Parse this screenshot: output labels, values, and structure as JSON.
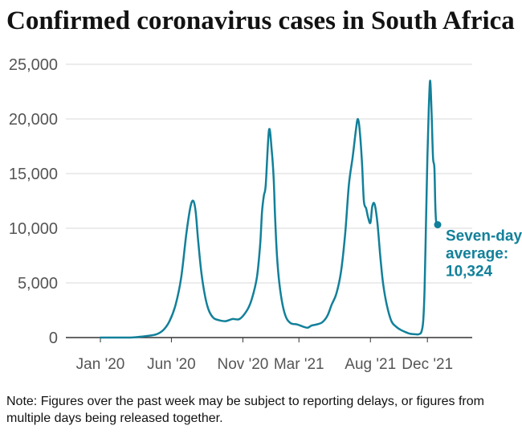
{
  "title": "Confirmed coronavirus cases in South Africa",
  "note": "Note: Figures over the past week may be subject to reporting delays, or figures from multiple days being released together.",
  "chart_data": {
    "type": "line",
    "title": "Confirmed coronavirus cases in South Africa",
    "xlabel": "",
    "ylabel": "",
    "ylim": [
      0,
      25000
    ],
    "xlim": [
      "2020-01-01",
      "2021-12-23"
    ],
    "y_ticks": [
      0,
      5000,
      10000,
      15000,
      20000,
      25000
    ],
    "y_tick_labels": [
      "0",
      "5,000",
      "10,000",
      "15,000",
      "20,000",
      "25,000"
    ],
    "x_ticks": [
      "2020-01-01",
      "2020-06-01",
      "2020-11-01",
      "2021-03-01",
      "2021-08-01",
      "2021-12-01"
    ],
    "x_tick_labels": [
      "Jan '20",
      "Jun '20",
      "Nov '20",
      "Mar '21",
      "Aug '21",
      "Dec '21"
    ],
    "grid": true,
    "series": [
      {
        "color": "#12809a",
        "x": [
          "2020-01-01",
          "2020-03-01",
          "2020-03-20",
          "2020-04-10",
          "2020-04-30",
          "2020-05-15",
          "2020-05-28",
          "2020-06-10",
          "2020-06-22",
          "2020-07-03",
          "2020-07-12",
          "2020-07-18",
          "2020-07-23",
          "2020-07-28",
          "2020-08-04",
          "2020-08-12",
          "2020-08-20",
          "2020-08-30",
          "2020-09-10",
          "2020-09-25",
          "2020-10-10",
          "2020-10-25",
          "2020-11-10",
          "2020-11-20",
          "2020-12-01",
          "2020-12-08",
          "2020-12-12",
          "2020-12-16",
          "2020-12-20",
          "2020-12-27",
          "2021-01-02",
          "2021-01-06",
          "2021-01-09",
          "2021-01-13",
          "2021-01-18",
          "2021-01-25",
          "2021-02-02",
          "2021-02-12",
          "2021-02-25",
          "2021-03-10",
          "2021-03-20",
          "2021-03-28",
          "2021-04-08",
          "2021-04-20",
          "2021-05-01",
          "2021-05-10",
          "2021-05-20",
          "2021-05-30",
          "2021-06-08",
          "2021-06-16",
          "2021-06-24",
          "2021-07-01",
          "2021-07-05",
          "2021-07-09",
          "2021-07-14",
          "2021-07-18",
          "2021-07-23",
          "2021-07-27",
          "2021-08-01",
          "2021-08-05",
          "2021-08-10",
          "2021-08-16",
          "2021-08-22",
          "2021-08-28",
          "2021-09-05",
          "2021-09-15",
          "2021-09-25",
          "2021-10-05",
          "2021-10-15",
          "2021-10-25",
          "2021-11-05",
          "2021-11-12",
          "2021-11-18",
          "2021-11-22",
          "2021-11-25",
          "2021-11-28",
          "2021-12-01",
          "2021-12-04",
          "2021-12-07",
          "2021-12-10",
          "2021-12-13",
          "2021-12-16",
          "2021-12-18",
          "2021-12-20",
          "2021-12-23"
        ],
        "y": [
          0,
          0,
          50,
          150,
          300,
          700,
          1500,
          3000,
          5500,
          9500,
          12000,
          12500,
          11500,
          9000,
          6000,
          3800,
          2500,
          1800,
          1600,
          1500,
          1700,
          1700,
          2500,
          3500,
          5500,
          8500,
          11500,
          13000,
          14000,
          19000,
          17000,
          14500,
          11000,
          7500,
          5000,
          3000,
          1800,
          1300,
          1200,
          1000,
          900,
          1100,
          1200,
          1400,
          2000,
          3000,
          4000,
          6000,
          9500,
          14000,
          16500,
          19000,
          20000,
          19000,
          16000,
          12500,
          11800,
          11000,
          10500,
          12000,
          12200,
          10500,
          7500,
          5000,
          3000,
          1500,
          1000,
          700,
          500,
          350,
          300,
          300,
          500,
          1500,
          4500,
          10500,
          16500,
          21000,
          23500,
          20500,
          16500,
          15500,
          12000,
          10500,
          10324
        ]
      }
    ],
    "annotations": [
      {
        "text": "Seven-day average:",
        "lines": [
          "Seven-day",
          "average:",
          "10,324"
        ],
        "value": 10324,
        "date": "2021-12-23"
      }
    ]
  }
}
